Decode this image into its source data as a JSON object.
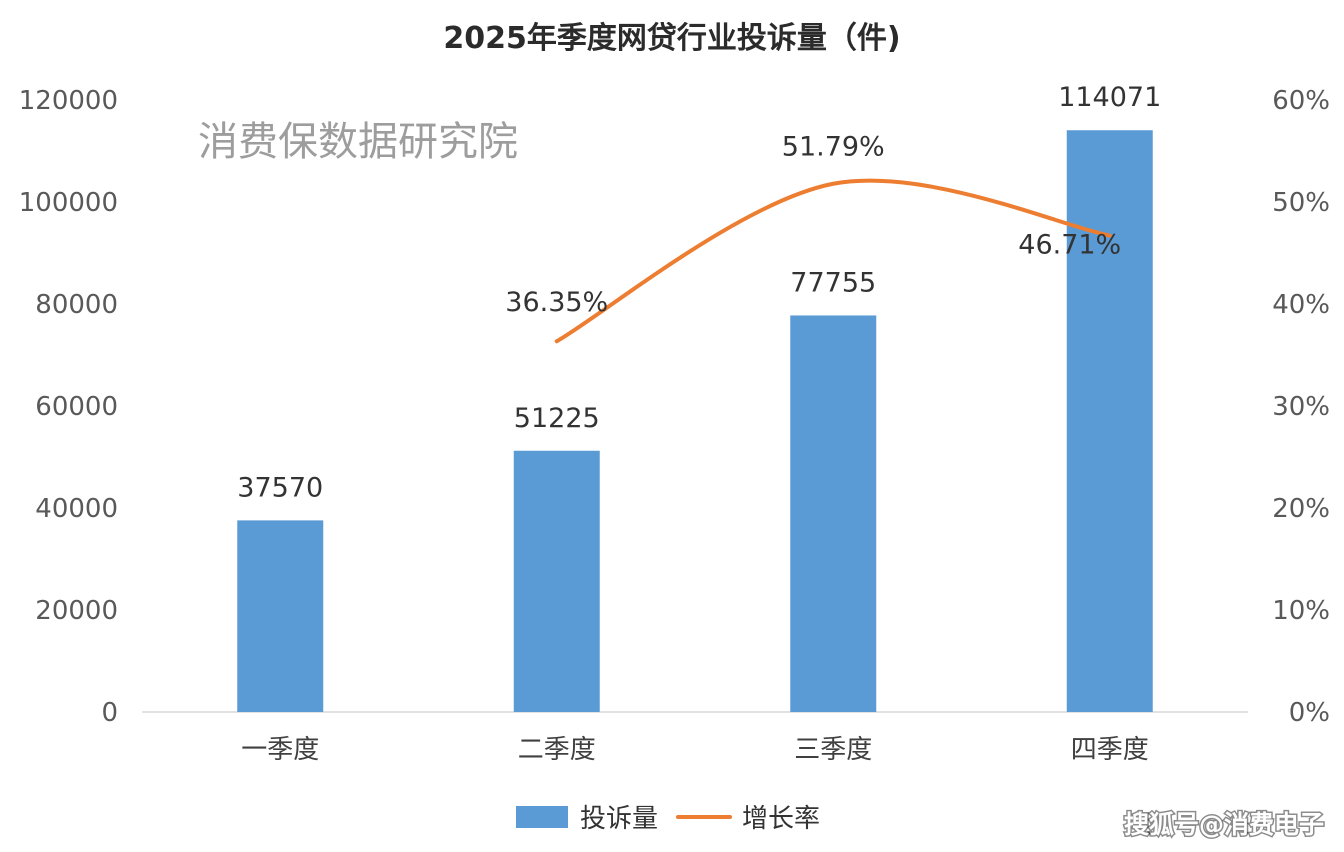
{
  "chart_data": {
    "type": "bar+line",
    "title": "2025年季度网贷行业投诉量（件)",
    "categories": [
      "一季度",
      "二季度",
      "三季度",
      "四季度"
    ],
    "series": [
      {
        "name": "投诉量",
        "type": "bar",
        "axis": "left",
        "values": [
          37570,
          51225,
          77755,
          114071
        ],
        "labels": [
          "37570",
          "51225",
          "77755",
          "114071"
        ],
        "color": "#5b9bd5"
      },
      {
        "name": "增长率",
        "type": "line",
        "axis": "right",
        "values": [
          null,
          36.35,
          51.79,
          46.71
        ],
        "labels": [
          "",
          "36.35%",
          "51.79%",
          "46.71%"
        ],
        "color": "#ed7d31"
      }
    ],
    "y_left": {
      "min": 0,
      "max": 120000,
      "step": 20000,
      "ticks": [
        "0",
        "20000",
        "40000",
        "60000",
        "80000",
        "100000",
        "120000"
      ]
    },
    "y_right": {
      "min": 0,
      "max": 60,
      "step": 10,
      "ticks": [
        "0%",
        "10%",
        "20%",
        "30%",
        "40%",
        "50%",
        "60%"
      ]
    },
    "legend": {
      "position": "bottom",
      "items": [
        "投诉量",
        "增长率"
      ]
    },
    "grid": false
  },
  "watermark": "消费保数据研究院",
  "credit": "搜狐号@消费电子"
}
